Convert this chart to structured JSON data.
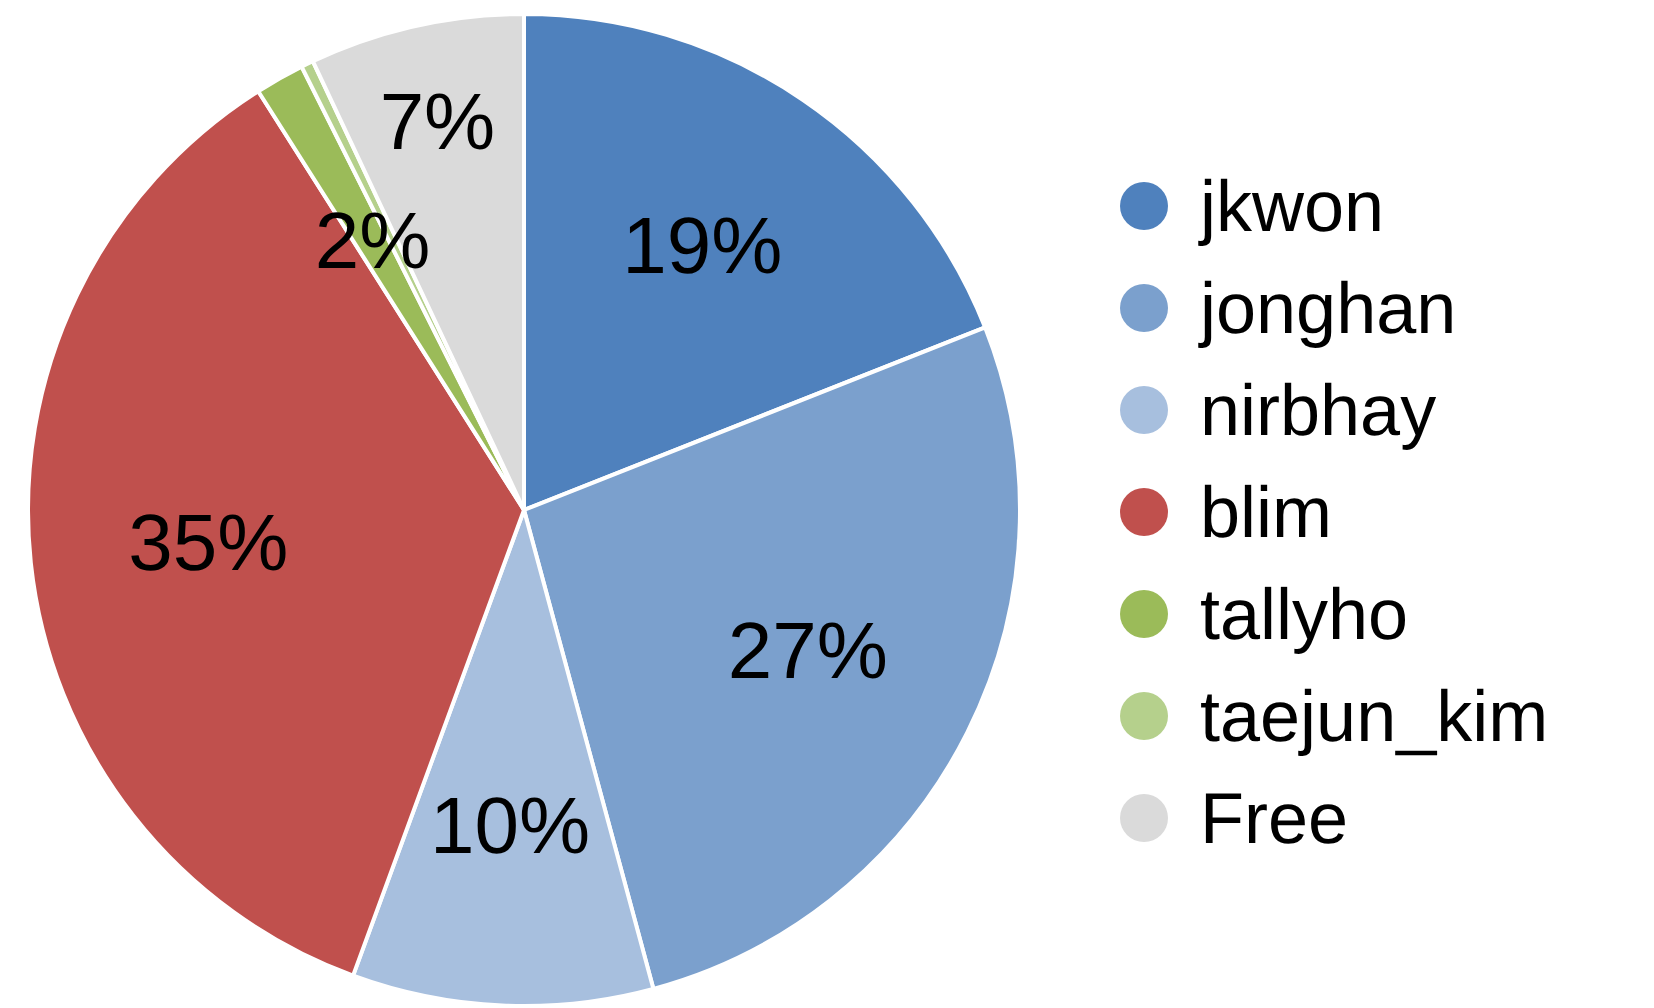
{
  "chart_data": {
    "type": "pie",
    "categories": [
      "jkwon",
      "jonghan",
      "nirbhay",
      "blim",
      "tallyho",
      "taejun_kim",
      "Free"
    ],
    "values": [
      19,
      26.8,
      9.8,
      35.4,
      1.6,
      0.4,
      7
    ],
    "value_labels": [
      "19%",
      "27%",
      "10%",
      "35%",
      "2%",
      null,
      "7%"
    ],
    "colors": [
      "#4f81bd",
      "#7ba0cd",
      "#a7bfde",
      "#c0504d",
      "#9bbb59",
      "#b5d08c",
      "#dadada"
    ],
    "legend": "right"
  }
}
